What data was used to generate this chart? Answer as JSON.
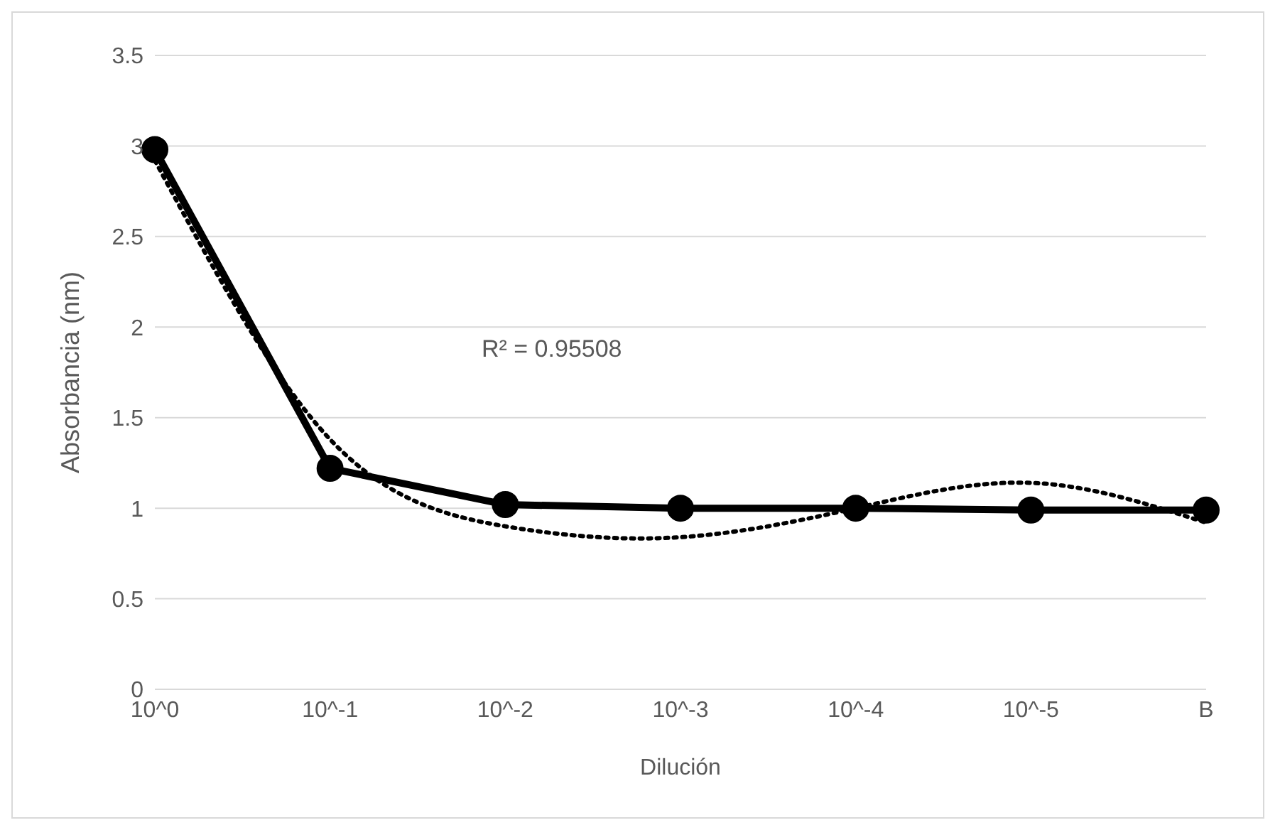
{
  "chart_data": {
    "type": "line",
    "xlabel": "Dilución",
    "ylabel": "Absorbancia (nm)",
    "categories": [
      "10^0",
      "10^-1",
      "10^-2",
      "10^-3",
      "10^-4",
      "10^-5",
      "B"
    ],
    "series": [
      {
        "color": "#000000",
        "values": [
          2.98,
          1.22,
          1.02,
          1.0,
          1.0,
          0.99,
          0.99
        ],
        "marker": "circle",
        "line_style": "solid"
      },
      {
        "type": "line",
        "color": "#000000",
        "values": [
          2.92,
          1.38,
          0.9,
          0.84,
          1.0,
          1.14,
          0.92
        ],
        "marker": "none",
        "line_style": "dotted"
      }
    ],
    "ylim": [
      0,
      3.5
    ],
    "yticks": [
      0,
      0.5,
      1,
      1.5,
      2,
      2.5,
      3,
      3.5
    ],
    "grid": "y",
    "legend": false,
    "annotations": [
      "R² = 0.95508"
    ]
  }
}
